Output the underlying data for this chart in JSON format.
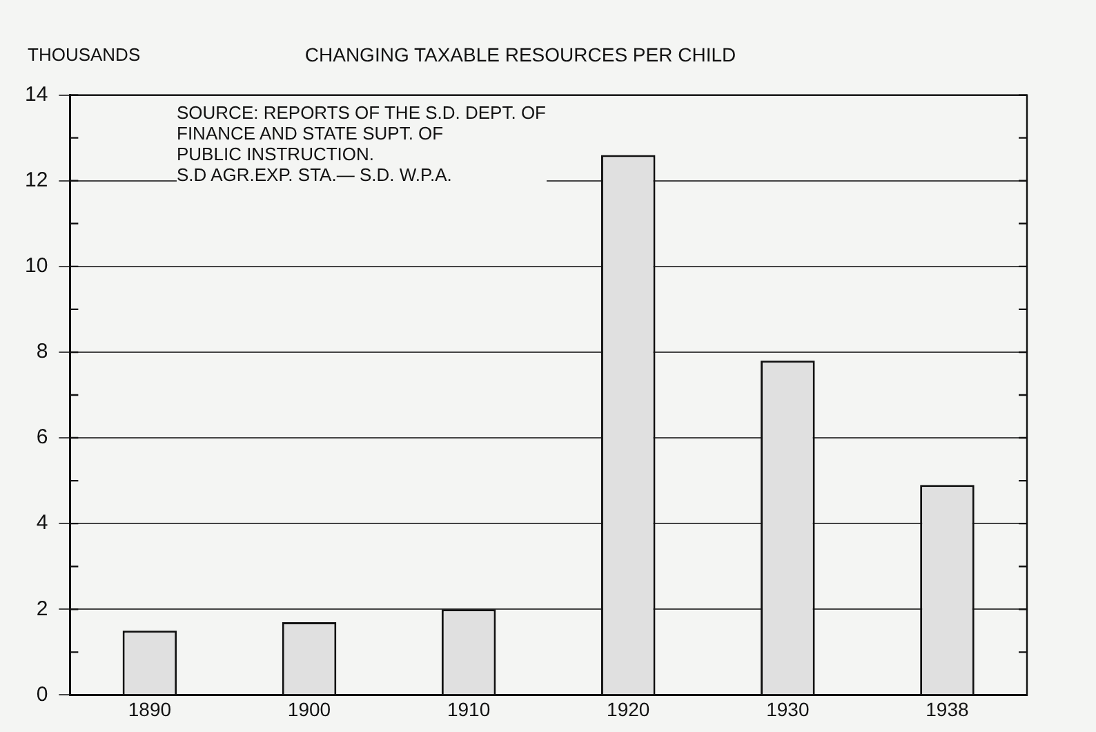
{
  "chart_data": {
    "type": "bar",
    "title": "CHANGING TAXABLE RESOURCES PER CHILD",
    "ylabel": "THOUSANDS",
    "categories": [
      "1890",
      "1900",
      "1910",
      "1920",
      "1930",
      "1938"
    ],
    "values": [
      1.5,
      1.7,
      2.0,
      12.6,
      7.8,
      4.9
    ],
    "color": "#e0e0e0",
    "ylim": [
      0,
      14
    ],
    "yticks": [
      0,
      {
        "value": 1,
        "label": null
      },
      2,
      {
        "value": 3,
        "label": null
      },
      4,
      {
        "value": 5,
        "label": null
      },
      6,
      {
        "value": 7,
        "label": null
      },
      8,
      {
        "value": 9,
        "label": null
      },
      10,
      {
        "value": 11,
        "label": null
      },
      12,
      {
        "value": 13,
        "label": null
      },
      14
    ],
    "grid": "y",
    "annotations": [
      "SOURCE: REPORTS OF THE S.D. DEPT. OF\nFINANCE AND STATE SUPT. OF\nPUBLIC INSTRUCTION.\nS.D AGR.EXP. STA.— S.D. W.P.A."
    ]
  }
}
